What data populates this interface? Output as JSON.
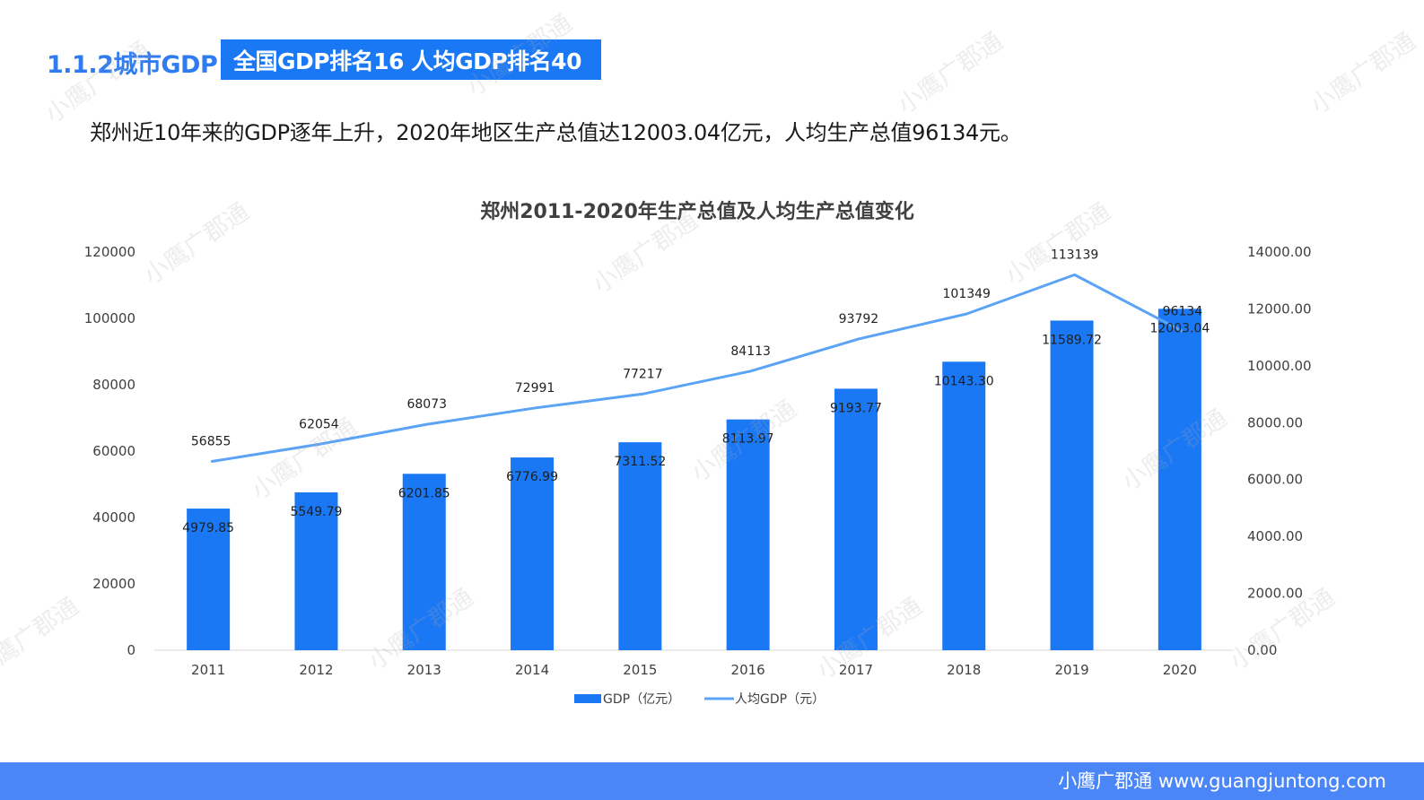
{
  "header": {
    "section_label": "1.1.2城市GDP",
    "badge": "全国GDP排名16 人均GDP排名40"
  },
  "summary": "郑州近10年来的GDP逐年上升，2020年地区生产总值达12003.04亿元，人均生产总值96134元。",
  "watermark_text": "小鹰广郡通",
  "footer": {
    "text": "小鹰广郡通 www.guangjuntong.com"
  },
  "colors": {
    "bar": "#1a78f5",
    "line": "#5ba3f5",
    "footer": "#4a86f7",
    "badge": "#1a78f5",
    "section_label": "#2f7bf2"
  },
  "chart_data": {
    "type": "bar",
    "title": "郑州2011-2020年生产总值及人均生产总值变化",
    "categories": [
      "2011",
      "2012",
      "2013",
      "2014",
      "2015",
      "2016",
      "2017",
      "2018",
      "2019",
      "2020"
    ],
    "series": [
      {
        "name": "GDP（亿元）",
        "type": "bar",
        "axis": "right",
        "values": [
          4979.85,
          5549.79,
          6201.85,
          6776.99,
          7311.52,
          8113.97,
          9193.77,
          10143.3,
          11589.72,
          12003.04
        ],
        "labels": [
          "4979.85",
          "5549.79",
          "6201.85",
          "6776.99",
          "7311.52",
          "8113.97",
          "9193.77",
          "10143.30",
          "11589.72",
          "12003.04"
        ]
      },
      {
        "name": "人均GDP（元）",
        "type": "line",
        "axis": "left",
        "values": [
          56855,
          62054,
          68073,
          72991,
          77217,
          84113,
          93792,
          101349,
          113139,
          96134
        ],
        "labels": [
          "56855",
          "62054",
          "68073",
          "72991",
          "77217",
          "84113",
          "93792",
          "101349",
          "113139",
          "96134"
        ]
      }
    ],
    "y_left": {
      "min": 0,
      "max": 120000,
      "ticks": [
        "0",
        "20000",
        "40000",
        "60000",
        "80000",
        "100000",
        "120000"
      ]
    },
    "y_right": {
      "min": 0,
      "max": 14000,
      "ticks": [
        "0.00",
        "2000.00",
        "4000.00",
        "6000.00",
        "8000.00",
        "10000.00",
        "12000.00",
        "14000.00"
      ]
    },
    "grid": false,
    "legend_position": "bottom"
  }
}
